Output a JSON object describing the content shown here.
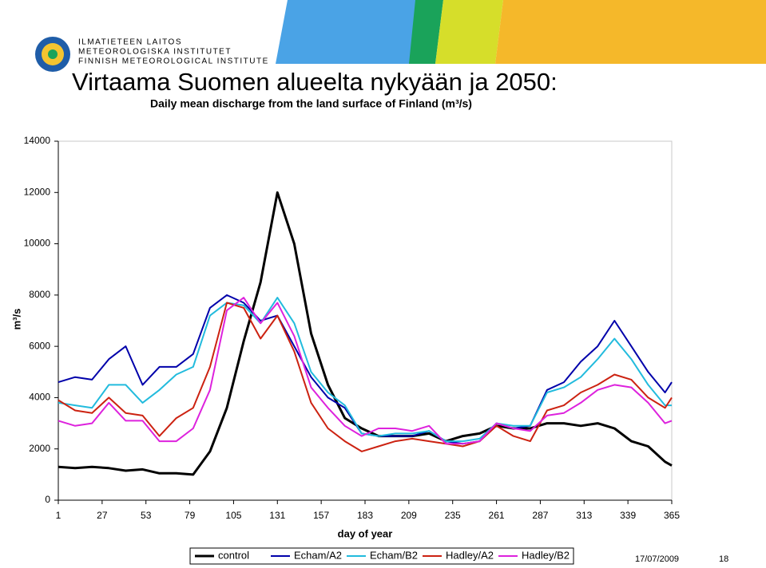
{
  "slide": {
    "logo": [
      "ILMATIETEEN LAITOS",
      "METEOROLOGISKA INSTITUTET",
      "FINNISH METEOROLOGICAL INSTITUTE"
    ],
    "date": "17/07/2009",
    "page": "18"
  },
  "chart_data": {
    "type": "line",
    "title": "Virtaama Suomen alueelta nykyään ja 2050:",
    "subtitle": "Daily mean discharge from the land surface of Finland (m³/s)",
    "y_label": "m³/s",
    "x_label": "day of year",
    "x": [
      1,
      11,
      21,
      31,
      41,
      51,
      61,
      71,
      81,
      91,
      101,
      111,
      121,
      131,
      141,
      151,
      161,
      171,
      181,
      191,
      201,
      211,
      221,
      231,
      241,
      251,
      261,
      271,
      281,
      291,
      301,
      311,
      321,
      331,
      341,
      351,
      361,
      365
    ],
    "xlim": [
      1,
      365
    ],
    "xticks": [
      1,
      27,
      53,
      79,
      105,
      131,
      157,
      183,
      209,
      235,
      261,
      287,
      313,
      339,
      365
    ],
    "ylim": [
      0,
      14000
    ],
    "yticks": [
      0,
      2000,
      4000,
      6000,
      8000,
      10000,
      12000,
      14000
    ],
    "grid": false,
    "legend": "bottom",
    "series": [
      {
        "name": "control",
        "color": "#000000",
        "values": [
          1300,
          1250,
          1300,
          1250,
          1150,
          1200,
          1050,
          1050,
          1000,
          1900,
          3600,
          6200,
          8500,
          12000,
          10000,
          6500,
          4500,
          3200,
          2800,
          2500,
          2500,
          2500,
          2600,
          2300,
          2500,
          2600,
          2900,
          2800,
          2800,
          3000,
          3000,
          2900,
          3000,
          2800,
          2300,
          2100,
          1500,
          1350
        ]
      },
      {
        "name": "Echam/A2",
        "color": "#0000aa",
        "values": [
          4600,
          4800,
          4700,
          5500,
          6000,
          4500,
          5200,
          5200,
          5700,
          7500,
          8000,
          7700,
          7000,
          7200,
          6000,
          4800,
          4000,
          3600,
          2600,
          2500,
          2500,
          2500,
          2700,
          2300,
          2200,
          2300,
          3000,
          2800,
          2900,
          4300,
          4600,
          5400,
          6000,
          7000,
          6000,
          5000,
          4200,
          4600
        ]
      },
      {
        "name": "Echam/B2",
        "color": "#22bbdd",
        "values": [
          3800,
          3700,
          3600,
          4500,
          4500,
          3800,
          4300,
          4900,
          5200,
          7200,
          7700,
          7600,
          6900,
          7900,
          6900,
          5000,
          4200,
          3700,
          2600,
          2500,
          2600,
          2600,
          2700,
          2300,
          2300,
          2400,
          3000,
          2900,
          2900,
          4200,
          4400,
          4800,
          5500,
          6300,
          5500,
          4500,
          3700,
          3700
        ]
      },
      {
        "name": "Hadley/A2",
        "color": "#cc2211",
        "values": [
          3900,
          3500,
          3400,
          4000,
          3400,
          3300,
          2500,
          3200,
          3600,
          5200,
          7700,
          7500,
          6300,
          7200,
          5800,
          3800,
          2800,
          2300,
          1900,
          2100,
          2300,
          2400,
          2300,
          2200,
          2100,
          2300,
          2900,
          2500,
          2300,
          3500,
          3700,
          4200,
          4500,
          4900,
          4700,
          4000,
          3600,
          4000
        ]
      },
      {
        "name": "Hadley/B2",
        "color": "#dd22dd",
        "values": [
          3100,
          2900,
          3000,
          3800,
          3100,
          3100,
          2300,
          2300,
          2800,
          4300,
          7400,
          7900,
          6900,
          7700,
          6400,
          4400,
          3600,
          2900,
          2500,
          2800,
          2800,
          2700,
          2900,
          2200,
          2200,
          2300,
          3000,
          2800,
          2700,
          3300,
          3400,
          3800,
          4300,
          4500,
          4400,
          3800,
          3000,
          3100
        ]
      }
    ]
  }
}
